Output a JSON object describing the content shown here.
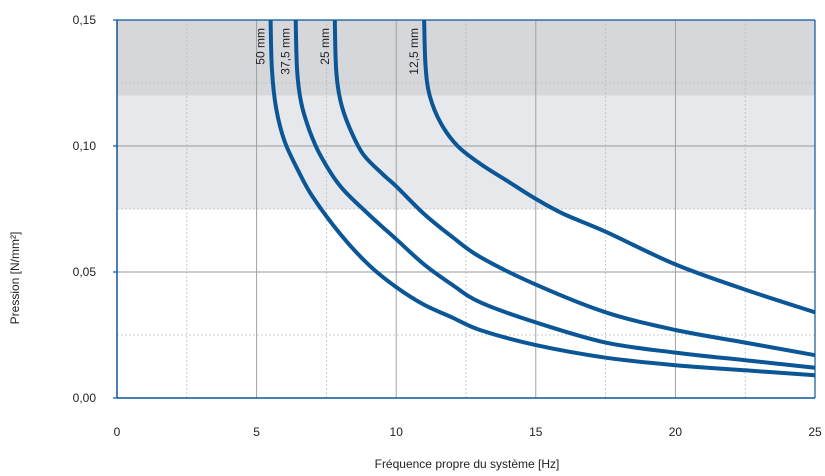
{
  "colors": {
    "curve": "#0b5697",
    "band_dark": "#d5d7da",
    "band_light": "#e6e8eb",
    "grid_major": "#9a9a9a",
    "grid_minor": "#bdbdbd",
    "axis": "#0b5697"
  },
  "chart_data": {
    "type": "line",
    "title": "",
    "xlabel": "Fréquence propre du système [Hz]",
    "ylabel": "Pression [N/mm²]",
    "xlim": [
      0,
      25
    ],
    "ylim": [
      0,
      0.15
    ],
    "x_ticks": [
      0,
      5,
      10,
      15,
      20,
      25
    ],
    "x_tick_labels": [
      "0",
      "5",
      "10",
      "15",
      "20",
      "25"
    ],
    "y_ticks": [
      0,
      0.05,
      0.1,
      0.15
    ],
    "y_tick_labels": [
      "0,00",
      "0,05",
      "0,10",
      "0,15"
    ],
    "x_minor_grid": [
      2.5,
      7.5,
      12.5,
      17.5,
      22.5
    ],
    "y_minor_grid": [
      0.025,
      0.075,
      0.125
    ],
    "grid": true,
    "bands": [
      {
        "from": 0.12,
        "to": 0.15,
        "shade": "dark"
      },
      {
        "from": 0.075,
        "to": 0.12,
        "shade": "light"
      }
    ],
    "series": [
      {
        "name": "50 mm",
        "x": [
          5.5,
          5.55,
          5.7,
          6.0,
          6.5,
          7.0,
          8.0,
          9.0,
          10.0,
          11.0,
          12.0,
          13.0,
          15.0,
          17.5,
          20.0,
          22.5,
          25.0
        ],
        "values": [
          0.15,
          0.13,
          0.115,
          0.102,
          0.09,
          0.08,
          0.065,
          0.053,
          0.044,
          0.037,
          0.032,
          0.027,
          0.021,
          0.016,
          0.013,
          0.011,
          0.009
        ]
      },
      {
        "name": "37,5 mm",
        "x": [
          6.4,
          6.45,
          6.6,
          6.9,
          7.3,
          8.0,
          9.0,
          10.0,
          11.0,
          12.0,
          13.0,
          15.0,
          17.5,
          20.0,
          22.5,
          25.0
        ],
        "values": [
          0.15,
          0.13,
          0.117,
          0.106,
          0.096,
          0.084,
          0.073,
          0.063,
          0.053,
          0.045,
          0.038,
          0.03,
          0.022,
          0.018,
          0.015,
          0.012
        ]
      },
      {
        "name": "25 mm",
        "x": [
          7.8,
          7.85,
          8.0,
          8.3,
          8.8,
          9.5,
          10.0,
          11.0,
          12.0,
          13.0,
          15.0,
          17.5,
          20.0,
          22.5,
          25.0
        ],
        "values": [
          0.15,
          0.13,
          0.118,
          0.108,
          0.097,
          0.089,
          0.084,
          0.073,
          0.064,
          0.056,
          0.045,
          0.034,
          0.027,
          0.022,
          0.017
        ]
      },
      {
        "name": "12,5 mm",
        "x": [
          11.0,
          11.05,
          11.2,
          11.6,
          12.2,
          13.0,
          14.0,
          15.0,
          16.0,
          17.5,
          20.0,
          22.5,
          25.0
        ],
        "values": [
          0.15,
          0.132,
          0.12,
          0.109,
          0.1,
          0.093,
          0.086,
          0.079,
          0.073,
          0.066,
          0.053,
          0.043,
          0.034
        ]
      }
    ]
  }
}
